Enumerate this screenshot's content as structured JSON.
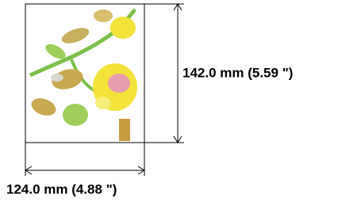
{
  "dimensions": {
    "height": {
      "label": "142.0 mm (5.59 \")"
    },
    "width": {
      "label": "124.0 mm (4.88 \")"
    }
  }
}
